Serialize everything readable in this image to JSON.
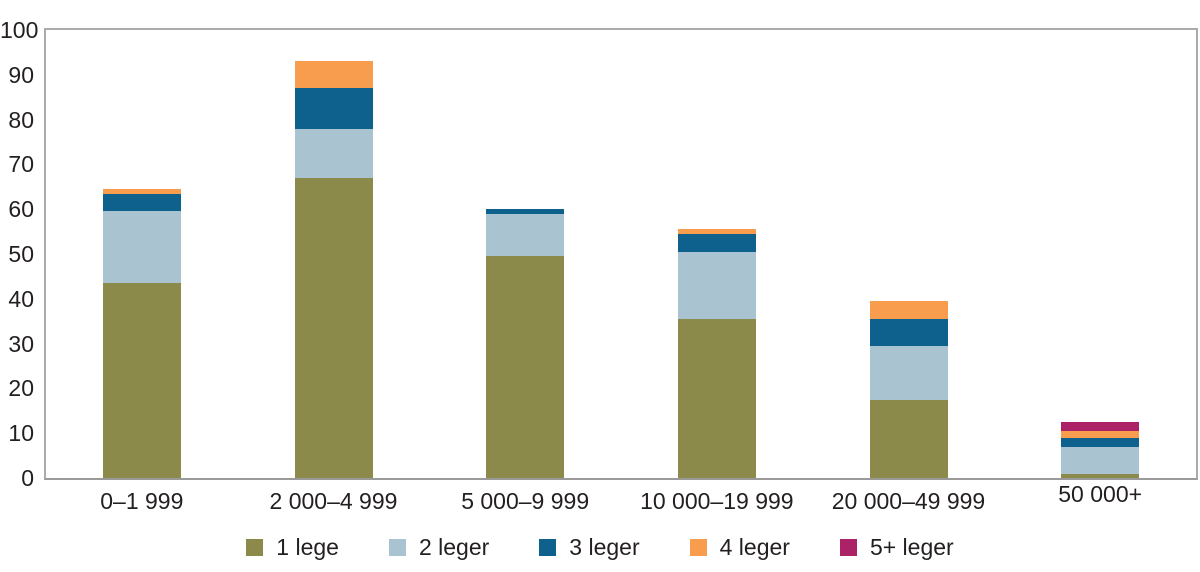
{
  "chart_data": {
    "type": "bar",
    "stacked": true,
    "title": "",
    "xlabel": "",
    "ylabel": "",
    "ylim": [
      0,
      100
    ],
    "yticks": [
      0,
      10,
      20,
      30,
      40,
      50,
      60,
      70,
      80,
      90,
      100
    ],
    "grid": false,
    "legend_position": "bottom",
    "categories": [
      "0–1 999",
      "2 000–4 999",
      "5 000–9 999",
      "10 000–19 999",
      "20 000–49 999",
      "50 000+"
    ],
    "series": [
      {
        "name": "1 lege",
        "color": "#8C8A4B",
        "values": [
          43.5,
          67.0,
          49.5,
          35.5,
          17.5,
          1.0
        ]
      },
      {
        "name": "2 leger",
        "color": "#A9C4D0",
        "values": [
          16.0,
          11.0,
          9.5,
          15.0,
          12.0,
          6.0
        ]
      },
      {
        "name": "3 leger",
        "color": "#0E618D",
        "values": [
          4.0,
          9.0,
          1.0,
          4.0,
          6.0,
          2.0
        ]
      },
      {
        "name": "4 leger",
        "color": "#F89C4E",
        "values": [
          1.0,
          6.0,
          0.0,
          1.0,
          4.0,
          1.5
        ]
      },
      {
        "name": "5+ leger",
        "color": "#AB2366",
        "values": [
          0.0,
          0.0,
          0.0,
          0.0,
          0.0,
          2.0
        ]
      }
    ],
    "stack_totals": [
      64.5,
      93.0,
      60.0,
      55.5,
      39.5,
      12.5
    ]
  },
  "colors": {
    "text": "#231F20",
    "axis_border": "#ABABAB",
    "background": "#FFFFFF"
  }
}
